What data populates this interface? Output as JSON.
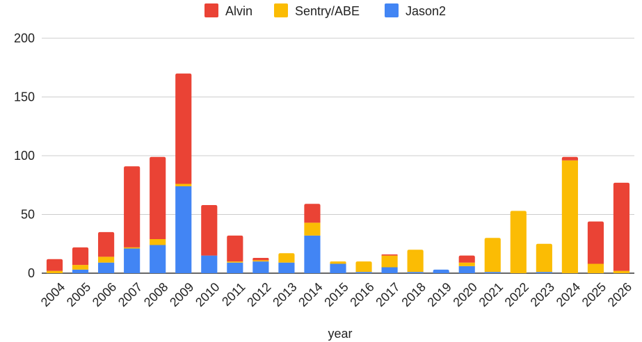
{
  "chart_data": {
    "type": "bar",
    "stacked": true,
    "title": "",
    "xlabel": "year",
    "ylabel": "",
    "ylim": [
      0,
      200
    ],
    "yticks": [
      0,
      50,
      100,
      150,
      200
    ],
    "grid": true,
    "legend_position": "top",
    "categories": [
      "2004",
      "2005",
      "2006",
      "2007",
      "2008",
      "2009",
      "2010",
      "2011",
      "2012",
      "2013",
      "2014",
      "2015",
      "2016",
      "2017",
      "2018",
      "2019",
      "2020",
      "2021",
      "2022",
      "2023",
      "2024",
      "2025",
      "2026"
    ],
    "series": [
      {
        "name": "Jason2",
        "color": "#4285F4",
        "values": [
          0,
          3,
          9,
          21,
          24,
          74,
          15,
          9,
          10,
          9,
          32,
          8,
          1,
          5,
          1,
          3,
          6,
          1,
          0,
          1,
          0,
          0,
          0
        ]
      },
      {
        "name": "Sentry/ABE",
        "color": "#FBBC04",
        "values": [
          2,
          4,
          5,
          1,
          5,
          2,
          0,
          1,
          1,
          8,
          11,
          2,
          9,
          10,
          19,
          0,
          3,
          29,
          53,
          24,
          96,
          8,
          2
        ]
      },
      {
        "name": "Alvin",
        "color": "#EA4335",
        "values": [
          10,
          15,
          21,
          69,
          70,
          94,
          43,
          22,
          2,
          0,
          16,
          0,
          0,
          1,
          0,
          0,
          6,
          0,
          0,
          0,
          3,
          36,
          75
        ]
      }
    ],
    "legend_order": [
      "Alvin",
      "Sentry/ABE",
      "Jason2"
    ]
  }
}
